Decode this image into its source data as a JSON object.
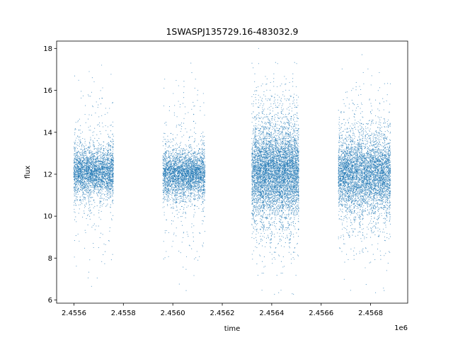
{
  "chart_data": {
    "type": "scatter",
    "title": "1SWASPJ135729.16-483032.9",
    "xlabel": "time",
    "ylabel": "flux",
    "x_offset_label": "1e6",
    "xlim": [
      2455530,
      2456950
    ],
    "ylim": [
      5.85,
      18.35
    ],
    "x_ticks": [
      2455600,
      2455800,
      2456000,
      2456200,
      2456400,
      2456600,
      2456800
    ],
    "x_tick_labels": [
      "2.4556",
      "2.4558",
      "2.4560",
      "2.4562",
      "2.4564",
      "2.4566",
      "2.4568"
    ],
    "y_ticks": [
      6,
      8,
      10,
      12,
      14,
      16,
      18
    ],
    "y_tick_labels": [
      "6",
      "8",
      "10",
      "12",
      "14",
      "16",
      "18"
    ],
    "grid": false,
    "legend": "none",
    "marker_color": "#1f77b4",
    "observing_seasons": [
      {
        "x_range": [
          2455600,
          2455760
        ],
        "center": 12.1,
        "core_sd": 0.55,
        "max_spread": 5.2,
        "density": 1.0
      },
      {
        "x_range": [
          2455960,
          2456130
        ],
        "center": 12.0,
        "core_sd": 0.55,
        "max_spread": 5.4,
        "density": 1.0
      },
      {
        "x_range": [
          2456320,
          2456510
        ],
        "center": 12.1,
        "core_sd": 1.1,
        "max_spread": 6.0,
        "density": 1.6
      },
      {
        "x_range": [
          2456670,
          2456880
        ],
        "center": 12.0,
        "core_sd": 0.9,
        "max_spread": 5.6,
        "density": 1.2
      }
    ],
    "notable_points": [
      {
        "x": 2455602,
        "y": 8.05
      },
      {
        "x": 2455671,
        "y": 6.65
      },
      {
        "x": 2455712,
        "y": 17.2
      },
      {
        "x": 2455969,
        "y": 9.2
      },
      {
        "x": 2456054,
        "y": 6.45
      },
      {
        "x": 2456073,
        "y": 17.3
      },
      {
        "x": 2456347,
        "y": 18.0
      },
      {
        "x": 2456428,
        "y": 6.35
      },
      {
        "x": 2456483,
        "y": 6.3
      },
      {
        "x": 2456765,
        "y": 17.7
      },
      {
        "x": 2456820,
        "y": 6.35
      },
      {
        "x": 2456855,
        "y": 6.45
      }
    ]
  }
}
